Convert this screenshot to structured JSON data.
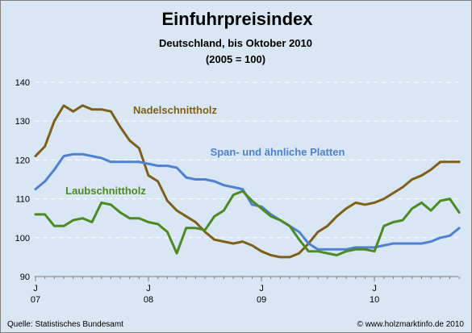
{
  "chart_data": {
    "type": "line",
    "title": "Einfuhrpreisindex",
    "subtitle_line1": "Deutschland, bis Oktober 2010",
    "subtitle_line2": "(2005 = 100)",
    "ylim": [
      90,
      140
    ],
    "y_ticks": [
      "90",
      "100",
      "110",
      "120",
      "130",
      "140"
    ],
    "x_ticks": [
      {
        "month": "J",
        "year": "07"
      },
      {
        "month": "J",
        "year": "08"
      },
      {
        "month": "J",
        "year": "09"
      },
      {
        "month": "J",
        "year": "10"
      }
    ],
    "x_dates": [
      "2007-01",
      "2007-02",
      "2007-03",
      "2007-04",
      "2007-05",
      "2007-06",
      "2007-07",
      "2007-08",
      "2007-09",
      "2007-10",
      "2007-11",
      "2007-12",
      "2008-01",
      "2008-02",
      "2008-03",
      "2008-04",
      "2008-05",
      "2008-06",
      "2008-07",
      "2008-08",
      "2008-09",
      "2008-10",
      "2008-11",
      "2008-12",
      "2009-01",
      "2009-02",
      "2009-03",
      "2009-04",
      "2009-05",
      "2009-06",
      "2009-07",
      "2009-08",
      "2009-09",
      "2009-10",
      "2009-11",
      "2009-12",
      "2010-01",
      "2010-02",
      "2010-03",
      "2010-04",
      "2010-05",
      "2010-06",
      "2010-07",
      "2010-08",
      "2010-09",
      "2010-10"
    ],
    "grid": true,
    "series": [
      {
        "name": "Nadelschnittholz",
        "color": "#7f5f1a",
        "values": [
          121.0,
          123.5,
          130.0,
          134.0,
          132.5,
          134.0,
          133.0,
          133.0,
          132.5,
          128.5,
          125.0,
          123.0,
          116.0,
          114.5,
          109.5,
          107.0,
          105.5,
          104.0,
          101.5,
          99.5,
          99.0,
          98.5,
          99.0,
          98.0,
          96.5,
          95.5,
          95.0,
          95.0,
          96.0,
          98.5,
          101.5,
          103.0,
          105.5,
          107.5,
          109.0,
          108.5,
          109.0,
          110.0,
          111.5,
          113.0,
          115.0,
          116.0,
          117.5,
          119.5,
          119.5,
          119.5
        ]
      },
      {
        "name": "Span- und ähnliche Platten",
        "color": "#4f81d0",
        "values": [
          112.5,
          114.5,
          117.5,
          121.0,
          121.5,
          121.5,
          121.0,
          120.5,
          119.5,
          119.5,
          119.5,
          119.5,
          119.0,
          118.5,
          118.5,
          118.0,
          115.5,
          115.0,
          115.0,
          114.5,
          113.5,
          113.0,
          112.5,
          108.5,
          108.0,
          106.0,
          104.5,
          103.0,
          101.5,
          98.5,
          97.0,
          97.0,
          97.0,
          97.0,
          97.5,
          97.5,
          97.5,
          98.0,
          98.5,
          98.5,
          98.5,
          98.5,
          99.0,
          100.0,
          100.5,
          102.5
        ]
      },
      {
        "name": "Laubschnittholz",
        "color": "#4e8a24",
        "values": [
          106.0,
          106.0,
          103.0,
          103.0,
          104.5,
          105.0,
          104.0,
          109.0,
          108.5,
          106.5,
          105.0,
          105.0,
          104.0,
          103.5,
          101.5,
          96.0,
          102.5,
          102.5,
          102.0,
          105.5,
          107.0,
          111.0,
          112.0,
          109.5,
          107.5,
          105.5,
          104.5,
          103.0,
          99.5,
          96.5,
          96.5,
          96.0,
          95.5,
          96.5,
          97.0,
          97.0,
          96.5,
          103.0,
          104.0,
          104.5,
          107.5,
          109.0,
          107.0,
          109.5,
          110.0,
          106.5
        ]
      }
    ]
  },
  "footer": {
    "source": "Quelle: Statistisches Bundesamt",
    "copyright": "© www.holzmarktinfo.de 2010"
  }
}
